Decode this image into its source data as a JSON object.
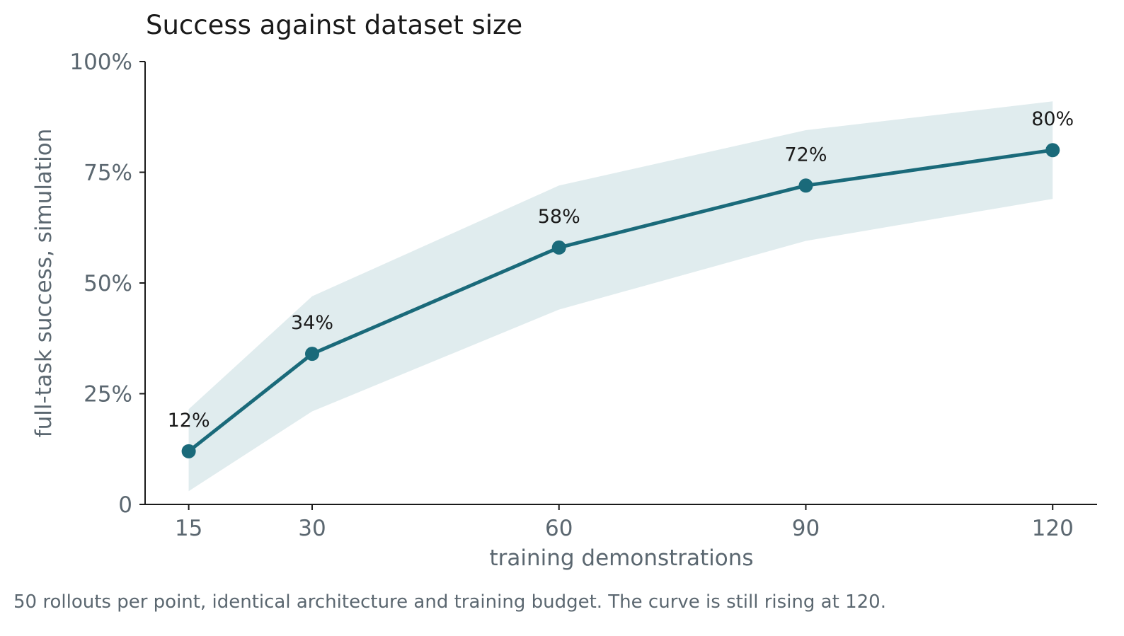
{
  "caption": "50 rollouts per point, identical architecture and training budget. The curve is still rising at 120.",
  "colors": {
    "line": "#1a6a7a",
    "band": "#e0ecee",
    "axis": "#1a1a1a",
    "tick_text": "#5b6770",
    "label_text": "#1a1a1a"
  },
  "chart_data": {
    "type": "line",
    "title": "Success against dataset size",
    "xlabel": "training demonstrations",
    "ylabel": "full-task success, simulation",
    "x": [
      15,
      30,
      60,
      90,
      120
    ],
    "x_tick_labels": [
      "15",
      "30",
      "60",
      "90",
      "120"
    ],
    "xlim": [
      9.7,
      125.4
    ],
    "ylim": [
      0,
      100
    ],
    "y_ticks": [
      0,
      25,
      50,
      75,
      100
    ],
    "y_tick_labels": [
      "0",
      "25%",
      "50%",
      "75%",
      "100%"
    ],
    "grid": false,
    "series": [
      {
        "values": [
          12,
          34,
          58,
          72,
          80
        ],
        "data_labels": [
          "12%",
          "34%",
          "58%",
          "72%",
          "80%"
        ],
        "ci_lower": [
          3,
          21,
          44,
          59.5,
          69
        ],
        "ci_upper": [
          21.5,
          47,
          72,
          84.5,
          91
        ]
      }
    ]
  }
}
